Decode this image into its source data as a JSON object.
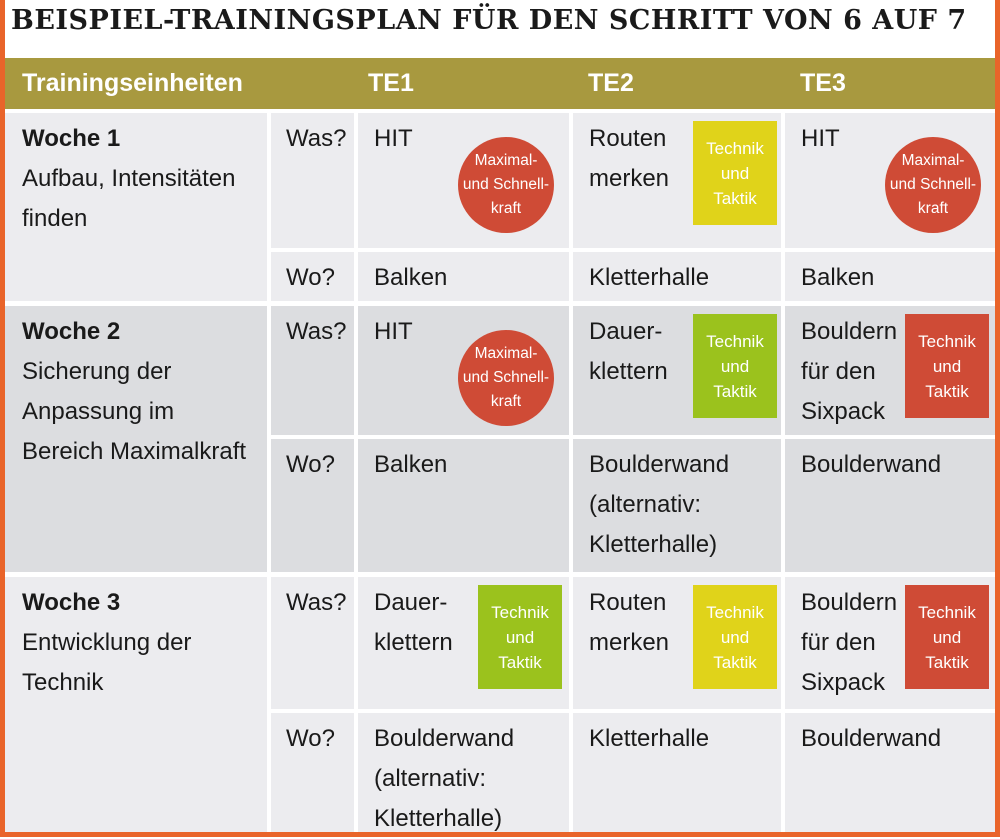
{
  "title": "BEISPIEL-TRAININGSPLAN FÜR DEN SCHRITT VON 6 AUF 7",
  "header": {
    "label": "Trainingseinheiten",
    "te1": "TE1",
    "te2": "TE2",
    "te3": "TE3"
  },
  "colors": {
    "frame": "#e9642a",
    "header": "#a8993f",
    "badge_red": "#cf4b36",
    "badge_yellow": "#e0d31a",
    "badge_green": "#9bc21d"
  },
  "weeks": [
    {
      "title": "Woche 1",
      "desc": [
        "Aufbau, Intensitäten",
        "finden"
      ],
      "was": "Was?",
      "wo": "Wo?",
      "te1": {
        "what": [
          "HIT"
        ],
        "where": [
          "Balken"
        ],
        "badge": {
          "lines": [
            "Maximal-",
            "und Schnell-",
            "kraft"
          ],
          "color": "red",
          "shape": "circle"
        }
      },
      "te2": {
        "what": [
          "Routen",
          "merken"
        ],
        "where": [
          "Kletterhalle"
        ],
        "badge": {
          "lines": [
            "Technik",
            "und",
            "Taktik"
          ],
          "color": "yellow",
          "shape": "rect"
        }
      },
      "te3": {
        "what": [
          "HIT"
        ],
        "where": [
          "Balken"
        ],
        "badge": {
          "lines": [
            "Maximal-",
            "und Schnell-",
            "kraft"
          ],
          "color": "red",
          "shape": "circle"
        }
      }
    },
    {
      "title": "Woche 2",
      "desc": [
        "Sicherung der",
        "Anpassung im",
        "Bereich Maximalkraft"
      ],
      "was": "Was?",
      "wo": "Wo?",
      "te1": {
        "what": [
          "HIT"
        ],
        "where": [
          "Balken"
        ],
        "badge": {
          "lines": [
            "Maximal-",
            "und Schnell-",
            "kraft"
          ],
          "color": "red",
          "shape": "circle"
        }
      },
      "te2": {
        "what": [
          "Dauer-",
          "klettern"
        ],
        "where": [
          "Boulderwand",
          "(alternativ:",
          "Kletterhalle)"
        ],
        "badge": {
          "lines": [
            "Technik",
            "und",
            "Taktik"
          ],
          "color": "green",
          "shape": "rect"
        }
      },
      "te3": {
        "what": [
          "Bouldern",
          "für den",
          "Sixpack"
        ],
        "where": [
          "Boulderwand"
        ],
        "badge": {
          "lines": [
            "Technik",
            "und",
            "Taktik"
          ],
          "color": "red",
          "shape": "rect"
        }
      }
    },
    {
      "title": "Woche 3",
      "desc": [
        "Entwicklung der",
        "Technik"
      ],
      "was": "Was?",
      "wo": "Wo?",
      "te1": {
        "what": [
          "Dauer-",
          "klettern"
        ],
        "where": [
          "Boulderwand",
          "(alternativ:",
          "Kletterhalle)"
        ],
        "badge": {
          "lines": [
            "Technik",
            "und",
            "Taktik"
          ],
          "color": "green",
          "shape": "rect"
        }
      },
      "te2": {
        "what": [
          "Routen",
          "merken"
        ],
        "where": [
          "Kletterhalle"
        ],
        "badge": {
          "lines": [
            "Technik",
            "und",
            "Taktik"
          ],
          "color": "yellow",
          "shape": "rect"
        }
      },
      "te3": {
        "what": [
          "Bouldern",
          "für den",
          "Sixpack"
        ],
        "where": [
          "Boulderwand"
        ],
        "badge": {
          "lines": [
            "Technik",
            "und",
            "Taktik"
          ],
          "color": "red",
          "shape": "rect"
        }
      }
    }
  ]
}
